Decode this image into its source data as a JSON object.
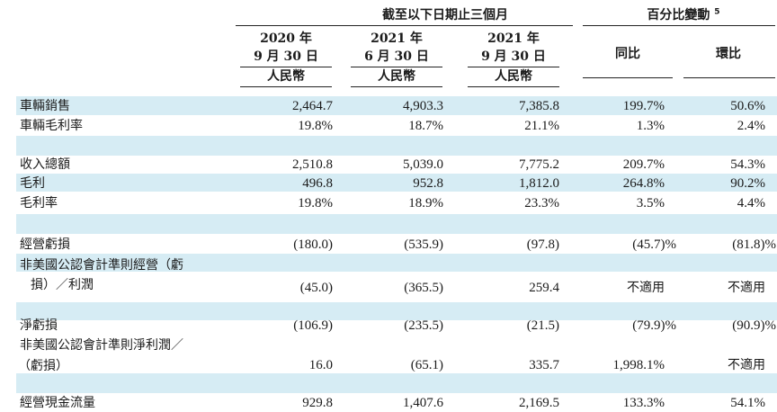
{
  "header": {
    "group1": "截至以下日期止三個月",
    "group2": "百分比變動",
    "group2_note": "5",
    "columns": [
      {
        "line1": "2020 年",
        "line2": "9 月 30 日",
        "unit": "人民幣"
      },
      {
        "line1": "2021 年",
        "line2": "6 月 30 日",
        "unit": "人民幣"
      },
      {
        "line1": "2021 年",
        "line2": "9 月 30 日",
        "unit": "人民幣"
      },
      {
        "line1": "同比"
      },
      {
        "line1": "環比"
      }
    ]
  },
  "rows": [
    {
      "label": "車輛銷售",
      "values": [
        "2,464.7",
        "4,903.3",
        "7,385.8",
        "199.7%",
        "50.6%"
      ]
    },
    {
      "label": "車輛毛利率",
      "values": [
        "19.8%",
        "18.7%",
        "21.1%",
        "1.3%",
        "2.4%"
      ]
    },
    {
      "label": "收入總額",
      "values": [
        "2,510.8",
        "5,039.0",
        "7,775.2",
        "209.7%",
        "54.3%"
      ]
    },
    {
      "label": "毛利",
      "values": [
        "496.8",
        "952.8",
        "1,812.0",
        "264.8%",
        "90.2%"
      ]
    },
    {
      "label": "毛利率",
      "values": [
        "19.8%",
        "18.9%",
        "23.3%",
        "3.5%",
        "4.4%"
      ]
    },
    {
      "label": "經營虧損",
      "values": [
        "(180.0)",
        "(535.9)",
        "(97.8)",
        "(45.7)%",
        "(81.8)%"
      ]
    },
    {
      "label": "非美國公認會計準則經營（虧",
      "label2": "損）／利潤",
      "values": [
        "(45.0)",
        "(365.5)",
        "259.4",
        "不適用",
        "不適用"
      ]
    },
    {
      "label": "淨虧損",
      "values": [
        "(106.9)",
        "(235.5)",
        "(21.5)",
        "(79.9)%",
        "(90.9)%"
      ]
    },
    {
      "label": "非美國公認會計準則淨利潤／",
      "label2": "（虧損）",
      "values": [
        "16.0",
        "(65.1)",
        "335.7",
        "1,998.1%",
        "不適用"
      ]
    },
    {
      "label": "經營現金流量",
      "values": [
        "929.8",
        "1,407.6",
        "2,169.5",
        "133.3%",
        "54.1%"
      ]
    }
  ]
}
